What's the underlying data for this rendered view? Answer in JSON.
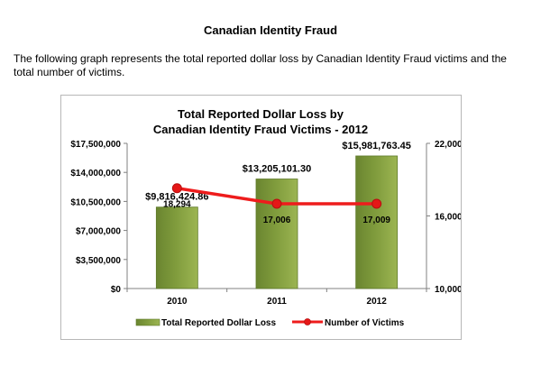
{
  "document": {
    "title": "Canadian Identity Fraud",
    "intro": "The following graph represents the total reported dollar loss by Canadian Identity Fraud victims and the total number of victims."
  },
  "chart_data": {
    "type": "bar",
    "title_lines": [
      "Total Reported Dollar Loss by",
      "Canadian Identity Fraud Victims - 2012"
    ],
    "categories": [
      "2010",
      "2011",
      "2012"
    ],
    "series": [
      {
        "name": "Total Reported Dollar Loss",
        "type": "bar",
        "axis": "left",
        "values": [
          9816424.86,
          13205101.3,
          15981763.45
        ],
        "labels": [
          "$9,816,424.86",
          "$13,205,101.30",
          "$15,981,763.45"
        ]
      },
      {
        "name": "Number of Victims",
        "type": "line",
        "axis": "right",
        "values": [
          18294,
          17006,
          17009
        ],
        "labels": [
          "18,294",
          "17,006",
          "17,009"
        ]
      }
    ],
    "y_left": {
      "range": [
        0,
        17500000
      ],
      "ticks": [
        0,
        3500000,
        7000000,
        10500000,
        14000000,
        17500000
      ],
      "tick_labels": [
        "$0",
        "$3,500,000",
        "$7,000,000",
        "$10,500,000",
        "$14,000,000",
        "$17,500,000"
      ]
    },
    "y_right": {
      "range": [
        10000,
        22000
      ],
      "ticks": [
        10000,
        16000,
        22000
      ],
      "tick_labels": [
        "10,000",
        "16,000",
        "22,000"
      ]
    },
    "grid": false,
    "legend_position": "bottom",
    "colors": {
      "bar_fill": "#7f9b3c",
      "bar_stroke": "#5f7a2a",
      "line": "#ee1c1c",
      "marker": "#e51717"
    }
  }
}
